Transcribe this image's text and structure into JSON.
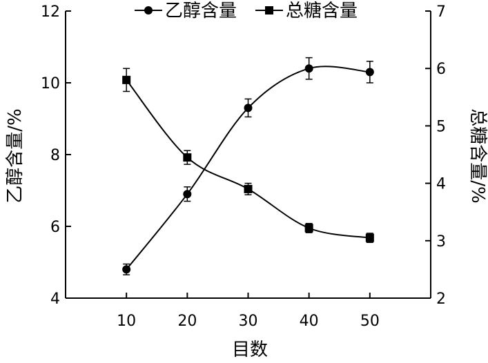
{
  "chart_data": {
    "type": "line",
    "xlabel": "目数",
    "ylabel": "乙醇含量/%",
    "y2label": "总糖含量/%",
    "x": [
      10,
      20,
      30,
      40,
      50
    ],
    "xticks": [
      "10",
      "20",
      "30",
      "40",
      "50"
    ],
    "xlim": [
      0,
      60
    ],
    "ylim": [
      4,
      12
    ],
    "yticks": [
      "4",
      "6",
      "8",
      "10",
      "12"
    ],
    "y2lim": [
      2,
      7
    ],
    "y2ticks": [
      "2",
      "3",
      "4",
      "5",
      "6",
      "7"
    ],
    "legend_position": "top",
    "grid": false,
    "series": [
      {
        "name": "乙醇含量",
        "axis": "left",
        "marker": "circle",
        "values": [
          4.8,
          6.9,
          9.3,
          10.4,
          10.3
        ],
        "errors": [
          0.15,
          0.2,
          0.25,
          0.3,
          0.3
        ]
      },
      {
        "name": "总糖含量",
        "axis": "right",
        "marker": "square",
        "values": [
          5.8,
          4.45,
          3.9,
          3.22,
          3.05
        ],
        "errors": [
          0.2,
          0.12,
          0.1,
          0.08,
          0.08
        ]
      }
    ]
  }
}
